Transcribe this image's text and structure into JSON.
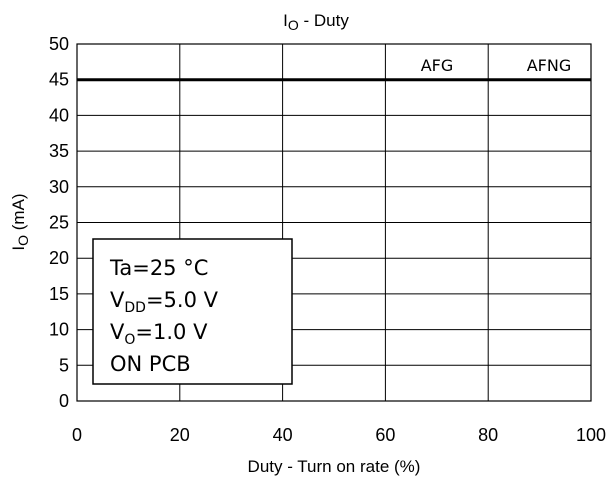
{
  "chart_data": {
    "type": "line",
    "title": {
      "main": "I",
      "sub": "O",
      "rest": " - Duty"
    },
    "xlabel": "Duty - Turn on rate (%)",
    "ylabel": {
      "main": "I",
      "sub": "O",
      "rest": " (mA)"
    },
    "xlim": [
      0,
      100
    ],
    "ylim": [
      0,
      50
    ],
    "x_ticks": [
      0,
      20,
      40,
      60,
      80,
      100
    ],
    "y_ticks": [
      0,
      5,
      10,
      15,
      20,
      25,
      30,
      35,
      40,
      45,
      50
    ],
    "grid": true,
    "series": [
      {
        "name": "AFG",
        "x": [
          0,
          100
        ],
        "y": [
          45,
          45
        ]
      },
      {
        "name": "AFNG",
        "x": [
          0,
          100
        ],
        "y": [
          45,
          45
        ]
      }
    ],
    "annotation": {
      "line1": "Ta=25 °C",
      "line2": {
        "main": "V",
        "sub": "DD",
        "rest": "=5.0 V"
      },
      "line3": {
        "main": "V",
        "sub": "O",
        "rest": "=1.0 V"
      },
      "line4": "ON PCB"
    }
  }
}
